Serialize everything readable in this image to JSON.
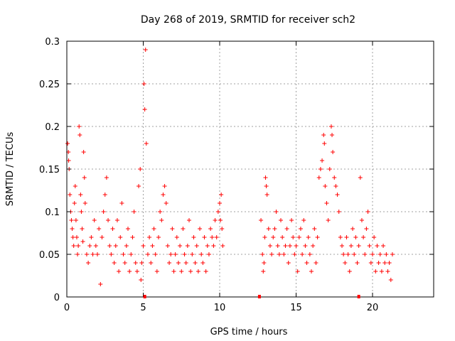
{
  "chart_data": {
    "type": "scatter",
    "title": "Day 268 of 2019, SRMTID for receiver sch2",
    "xlabel": "GPS time / hours",
    "ylabel": "SRMTID / TECUs",
    "xlim": [
      0,
      24
    ],
    "ylim": [
      0,
      0.3
    ],
    "x_ticks": [
      0,
      5,
      10,
      15,
      20
    ],
    "x_tick_labels": [
      "0",
      "5",
      "10",
      "15",
      "20"
    ],
    "y_ticks": [
      0,
      0.05,
      0.1,
      0.15,
      0.2,
      0.25,
      0.3
    ],
    "y_tick_labels": [
      "0",
      "0.05",
      "0.1",
      "0.15",
      "0.2",
      "0.25",
      "0.3"
    ],
    "grid": true,
    "marker": "+",
    "color": "#ff0000",
    "gap_markers_x": [
      5.1,
      12.6,
      19.1
    ],
    "series": [
      {
        "name": "SRMTID",
        "points": [
          [
            0.05,
            0.18
          ],
          [
            0.1,
            0.17
          ],
          [
            0.12,
            0.16
          ],
          [
            0.15,
            0.15
          ],
          [
            0.2,
            0.12
          ],
          [
            0.25,
            0.1
          ],
          [
            0.3,
            0.09
          ],
          [
            0.35,
            0.08
          ],
          [
            0.4,
            0.07
          ],
          [
            0.45,
            0.06
          ],
          [
            0.5,
            0.11
          ],
          [
            0.55,
            0.13
          ],
          [
            0.6,
            0.09
          ],
          [
            0.65,
            0.07
          ],
          [
            0.7,
            0.05
          ],
          [
            0.75,
            0.06
          ],
          [
            0.8,
            0.2
          ],
          [
            0.85,
            0.19
          ],
          [
            0.9,
            0.12
          ],
          [
            0.95,
            0.1
          ],
          [
            1.0,
            0.08
          ],
          [
            1.05,
            0.065
          ],
          [
            1.1,
            0.17
          ],
          [
            1.15,
            0.14
          ],
          [
            1.2,
            0.11
          ],
          [
            1.3,
            0.05
          ],
          [
            1.4,
            0.04
          ],
          [
            1.5,
            0.06
          ],
          [
            1.6,
            0.07
          ],
          [
            1.7,
            0.05
          ],
          [
            1.8,
            0.09
          ],
          [
            1.9,
            0.06
          ],
          [
            2.0,
            0.05
          ],
          [
            2.1,
            0.08
          ],
          [
            2.2,
            0.015
          ],
          [
            2.3,
            0.07
          ],
          [
            2.4,
            0.1
          ],
          [
            2.5,
            0.12
          ],
          [
            2.6,
            0.14
          ],
          [
            2.7,
            0.09
          ],
          [
            2.8,
            0.06
          ],
          [
            2.9,
            0.05
          ],
          [
            3.0,
            0.08
          ],
          [
            3.1,
            0.04
          ],
          [
            3.2,
            0.06
          ],
          [
            3.3,
            0.09
          ],
          [
            3.4,
            0.03
          ],
          [
            3.5,
            0.07
          ],
          [
            3.6,
            0.11
          ],
          [
            3.7,
            0.05
          ],
          [
            3.8,
            0.04
          ],
          [
            3.9,
            0.06
          ],
          [
            4.0,
            0.08
          ],
          [
            4.1,
            0.03
          ],
          [
            4.2,
            0.05
          ],
          [
            4.3,
            0.07
          ],
          [
            4.4,
            0.1
          ],
          [
            4.5,
            0.04
          ],
          [
            4.6,
            0.03
          ],
          [
            4.7,
            0.13
          ],
          [
            4.8,
            0.15
          ],
          [
            4.85,
            0.02
          ],
          [
            4.9,
            0.04
          ],
          [
            5.0,
            0.06
          ],
          [
            5.05,
            0.25
          ],
          [
            5.1,
            0.22
          ],
          [
            5.15,
            0.29
          ],
          [
            5.2,
            0.18
          ],
          [
            5.3,
            0.05
          ],
          [
            5.4,
            0.07
          ],
          [
            5.5,
            0.04
          ],
          [
            5.6,
            0.06
          ],
          [
            5.7,
            0.08
          ],
          [
            5.8,
            0.05
          ],
          [
            5.9,
            0.03
          ],
          [
            6.0,
            0.07
          ],
          [
            6.1,
            0.1
          ],
          [
            6.2,
            0.09
          ],
          [
            6.3,
            0.12
          ],
          [
            6.4,
            0.13
          ],
          [
            6.5,
            0.11
          ],
          [
            6.6,
            0.06
          ],
          [
            6.7,
            0.04
          ],
          [
            6.8,
            0.05
          ],
          [
            6.9,
            0.08
          ],
          [
            7.0,
            0.03
          ],
          [
            7.1,
            0.05
          ],
          [
            7.2,
            0.07
          ],
          [
            7.3,
            0.04
          ],
          [
            7.4,
            0.06
          ],
          [
            7.5,
            0.03
          ],
          [
            7.6,
            0.08
          ],
          [
            7.7,
            0.05
          ],
          [
            7.8,
            0.04
          ],
          [
            7.9,
            0.06
          ],
          [
            8.0,
            0.09
          ],
          [
            8.1,
            0.03
          ],
          [
            8.2,
            0.05
          ],
          [
            8.3,
            0.07
          ],
          [
            8.4,
            0.04
          ],
          [
            8.5,
            0.06
          ],
          [
            8.6,
            0.03
          ],
          [
            8.7,
            0.08
          ],
          [
            8.8,
            0.05
          ],
          [
            8.9,
            0.04
          ],
          [
            9.0,
            0.07
          ],
          [
            9.1,
            0.03
          ],
          [
            9.2,
            0.06
          ],
          [
            9.3,
            0.05
          ],
          [
            9.4,
            0.08
          ],
          [
            9.5,
            0.07
          ],
          [
            9.6,
            0.06
          ],
          [
            9.7,
            0.09
          ],
          [
            9.8,
            0.07
          ],
          [
            9.9,
            0.1
          ],
          [
            10.0,
            0.11
          ],
          [
            10.05,
            0.09
          ],
          [
            10.1,
            0.12
          ],
          [
            10.15,
            0.08
          ],
          [
            10.2,
            0.06
          ],
          [
            12.7,
            0.09
          ],
          [
            12.8,
            0.05
          ],
          [
            12.85,
            0.03
          ],
          [
            12.9,
            0.04
          ],
          [
            12.95,
            0.07
          ],
          [
            13.0,
            0.14
          ],
          [
            13.05,
            0.13
          ],
          [
            13.1,
            0.12
          ],
          [
            13.2,
            0.08
          ],
          [
            13.3,
            0.06
          ],
          [
            13.4,
            0.05
          ],
          [
            13.5,
            0.07
          ],
          [
            13.6,
            0.08
          ],
          [
            13.7,
            0.1
          ],
          [
            13.8,
            0.06
          ],
          [
            13.9,
            0.05
          ],
          [
            14.0,
            0.09
          ],
          [
            14.1,
            0.07
          ],
          [
            14.2,
            0.05
          ],
          [
            14.3,
            0.06
          ],
          [
            14.4,
            0.08
          ],
          [
            14.5,
            0.04
          ],
          [
            14.6,
            0.06
          ],
          [
            14.7,
            0.09
          ],
          [
            14.8,
            0.07
          ],
          [
            14.9,
            0.05
          ],
          [
            15.0,
            0.06
          ],
          [
            15.1,
            0.03
          ],
          [
            15.2,
            0.07
          ],
          [
            15.3,
            0.08
          ],
          [
            15.4,
            0.05
          ],
          [
            15.5,
            0.09
          ],
          [
            15.6,
            0.06
          ],
          [
            15.7,
            0.04
          ],
          [
            15.8,
            0.07
          ],
          [
            15.9,
            0.05
          ],
          [
            16.0,
            0.03
          ],
          [
            16.1,
            0.06
          ],
          [
            16.2,
            0.08
          ],
          [
            16.3,
            0.04
          ],
          [
            16.4,
            0.07
          ],
          [
            16.5,
            0.14
          ],
          [
            16.6,
            0.15
          ],
          [
            16.7,
            0.16
          ],
          [
            16.8,
            0.19
          ],
          [
            16.85,
            0.18
          ],
          [
            16.9,
            0.13
          ],
          [
            17.0,
            0.11
          ],
          [
            17.1,
            0.09
          ],
          [
            17.2,
            0.15
          ],
          [
            17.3,
            0.2
          ],
          [
            17.35,
            0.19
          ],
          [
            17.4,
            0.17
          ],
          [
            17.5,
            0.14
          ],
          [
            17.6,
            0.13
          ],
          [
            17.7,
            0.12
          ],
          [
            17.8,
            0.1
          ],
          [
            17.9,
            0.07
          ],
          [
            18.0,
            0.06
          ],
          [
            18.1,
            0.05
          ],
          [
            18.2,
            0.04
          ],
          [
            18.3,
            0.07
          ],
          [
            18.4,
            0.05
          ],
          [
            18.5,
            0.03
          ],
          [
            18.6,
            0.06
          ],
          [
            18.7,
            0.08
          ],
          [
            18.8,
            0.05
          ],
          [
            18.9,
            0.07
          ],
          [
            19.0,
            0.04
          ],
          [
            19.1,
            0.06
          ],
          [
            19.2,
            0.14
          ],
          [
            19.3,
            0.09
          ],
          [
            19.4,
            0.07
          ],
          [
            19.5,
            0.05
          ],
          [
            19.6,
            0.08
          ],
          [
            19.7,
            0.1
          ],
          [
            19.8,
            0.06
          ],
          [
            19.9,
            0.04
          ],
          [
            20.0,
            0.05
          ],
          [
            20.1,
            0.07
          ],
          [
            20.2,
            0.03
          ],
          [
            20.3,
            0.06
          ],
          [
            20.4,
            0.04
          ],
          [
            20.5,
            0.05
          ],
          [
            20.6,
            0.03
          ],
          [
            20.7,
            0.06
          ],
          [
            20.8,
            0.04
          ],
          [
            20.9,
            0.05
          ],
          [
            21.0,
            0.03
          ],
          [
            21.1,
            0.04
          ],
          [
            21.2,
            0.02
          ],
          [
            21.3,
            0.05
          ]
        ]
      }
    ]
  }
}
